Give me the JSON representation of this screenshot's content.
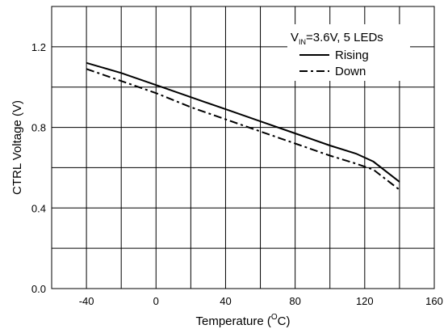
{
  "chart_data": {
    "type": "line",
    "xlabel": "Temperature (",
    "xlabel_unit": "O",
    "xlabel_tail": "C)",
    "ylabel": "CTRL Voltage (V)",
    "xlim": [
      -60,
      160
    ],
    "ylim": [
      0.0,
      1.4
    ],
    "x_ticks": [
      -40,
      0,
      40,
      80,
      120,
      160
    ],
    "x_tick_labels": [
      "-40",
      "0",
      "40",
      "80",
      "120",
      "160"
    ],
    "y_ticks": [
      0.0,
      0.4,
      0.8,
      1.2
    ],
    "y_tick_labels": [
      "0.0",
      "0.4",
      "0.8",
      "1.2"
    ],
    "grid": true,
    "legend_placement": "top-right",
    "legend": {
      "title_main": "V",
      "title_sub": "IN",
      "title_tail": "=3.6V, 5 LEDs"
    },
    "series": [
      {
        "name": "Rising",
        "style": "solid",
        "x": [
          -40,
          -20,
          0,
          20,
          40,
          60,
          80,
          100,
          115,
          125,
          140
        ],
        "y": [
          1.12,
          1.07,
          1.01,
          0.95,
          0.89,
          0.83,
          0.77,
          0.71,
          0.67,
          0.63,
          0.53
        ]
      },
      {
        "name": "Down",
        "style": "dashdot",
        "x": [
          -40,
          -20,
          0,
          20,
          40,
          60,
          80,
          100,
          115,
          125,
          140
        ],
        "y": [
          1.09,
          1.03,
          0.97,
          0.9,
          0.84,
          0.78,
          0.72,
          0.66,
          0.62,
          0.59,
          0.49
        ]
      }
    ]
  }
}
